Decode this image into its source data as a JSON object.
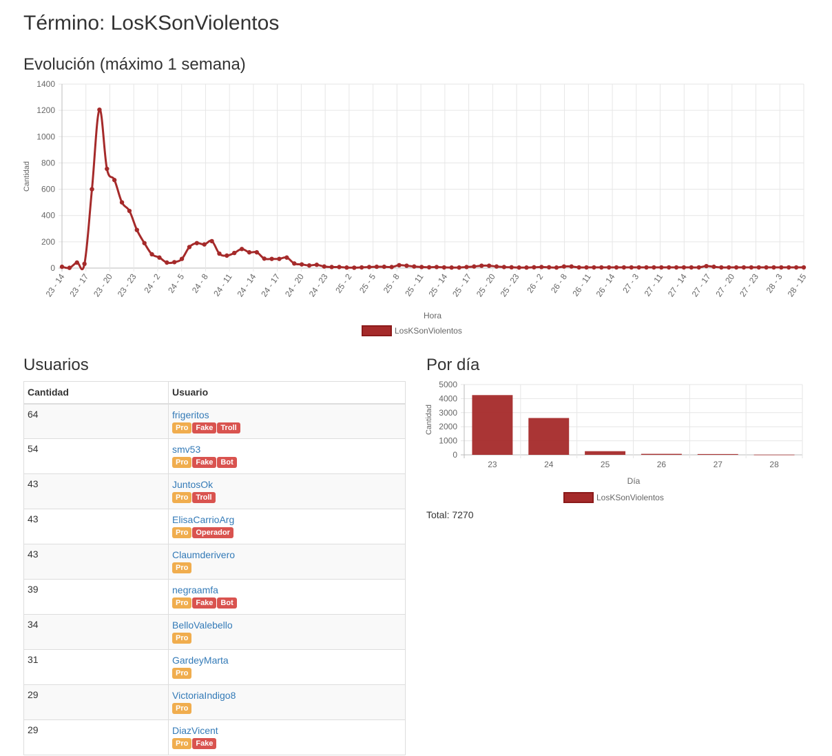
{
  "page": {
    "title": "Término: LosKSonViolentos",
    "evolution_heading": "Evolución (máximo 1 semana)",
    "users_heading": "Usuarios",
    "per_day_heading": "Por día",
    "total_text": "Total: 7270"
  },
  "colors": {
    "series": "#a52a2a",
    "pro_badge": "#f0ad4e",
    "red_badge": "#d9534f",
    "link": "#337ab7"
  },
  "users_table": {
    "headers": {
      "count": "Cantidad",
      "user": "Usuario"
    },
    "rows": [
      {
        "count": "64",
        "user": "frigeritos",
        "badges": [
          "Pro",
          "Fake",
          "Troll"
        ]
      },
      {
        "count": "54",
        "user": "smv53",
        "badges": [
          "Pro",
          "Fake",
          "Bot"
        ]
      },
      {
        "count": "43",
        "user": "JuntosOk",
        "badges": [
          "Pro",
          "Troll"
        ]
      },
      {
        "count": "43",
        "user": "ElisaCarrioArg",
        "badges": [
          "Pro",
          "Operador"
        ]
      },
      {
        "count": "43",
        "user": "Claumderivero",
        "badges": [
          "Pro"
        ]
      },
      {
        "count": "39",
        "user": "negraamfa",
        "badges": [
          "Pro",
          "Fake",
          "Bot"
        ]
      },
      {
        "count": "34",
        "user": "BelloValebello",
        "badges": [
          "Pro"
        ]
      },
      {
        "count": "31",
        "user": "GardeyMarta",
        "badges": [
          "Pro"
        ]
      },
      {
        "count": "29",
        "user": "VictoriaIndigo8",
        "badges": [
          "Pro"
        ]
      },
      {
        "count": "29",
        "user": "DiazVicent",
        "badges": [
          "Pro",
          "Fake"
        ]
      }
    ]
  },
  "chart_data": [
    {
      "type": "line",
      "xlabel": "Hora",
      "ylabel": "Cantidad",
      "ylim": [
        0,
        1400
      ],
      "yticks": [
        0,
        200,
        400,
        600,
        800,
        1000,
        1200,
        1400
      ],
      "grid": true,
      "legend": "bottom",
      "x_tick_labels": [
        "23 - 14",
        "23 - 17",
        "23 - 20",
        "23 - 23",
        "24 - 2",
        "24 - 5",
        "24 - 8",
        "24 - 11",
        "24 - 14",
        "24 - 17",
        "24 - 20",
        "24 - 23",
        "25 - 2",
        "25 - 5",
        "25 - 8",
        "25 - 11",
        "25 - 14",
        "25 - 17",
        "25 - 20",
        "25 - 23",
        "26 - 2",
        "26 - 8",
        "26 - 11",
        "26 - 14",
        "27 - 3",
        "27 - 11",
        "27 - 14",
        "27 - 17",
        "27 - 20",
        "27 - 23",
        "28 - 3",
        "28 - 15"
      ],
      "series": [
        {
          "name": "LosKSonViolentos",
          "values": [
            10,
            2,
            42,
            32,
            600,
            1205,
            755,
            670,
            500,
            435,
            290,
            190,
            105,
            80,
            42,
            45,
            70,
            160,
            190,
            180,
            205,
            110,
            95,
            115,
            145,
            120,
            120,
            72,
            70,
            70,
            80,
            35,
            28,
            20,
            25,
            12,
            8,
            8,
            4,
            3,
            5,
            8,
            10,
            10,
            8,
            22,
            18,
            12,
            8,
            6,
            8,
            5,
            4,
            4,
            8,
            12,
            18,
            18,
            12,
            8,
            6,
            4,
            4,
            6,
            8,
            6,
            4,
            12,
            12,
            5,
            5,
            5,
            5,
            5,
            5,
            5,
            5,
            5,
            5,
            5,
            5,
            5,
            5,
            5,
            5,
            5,
            15,
            10,
            5,
            5,
            5,
            5,
            5,
            5,
            5,
            5,
            5,
            5,
            5,
            5
          ]
        }
      ]
    },
    {
      "type": "bar",
      "xlabel": "Día",
      "ylabel": "Cantidad",
      "ylim": [
        0,
        5000
      ],
      "yticks": [
        0,
        1000,
        2000,
        3000,
        4000,
        5000
      ],
      "grid": true,
      "legend": "bottom",
      "categories": [
        "23",
        "24",
        "25",
        "26",
        "27",
        "28"
      ],
      "series": [
        {
          "name": "LosKSonViolentos",
          "values": [
            4250,
            2620,
            260,
            70,
            55,
            15
          ]
        }
      ]
    }
  ]
}
